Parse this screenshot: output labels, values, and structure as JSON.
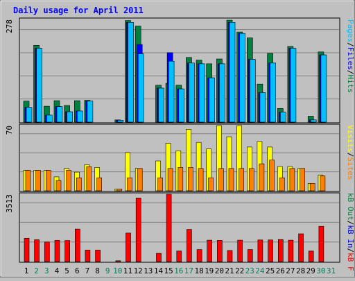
{
  "chart_data": [
    {
      "type": "bar",
      "title": "Daily usage for April 2011",
      "panel": "hits-files-pages",
      "ylim": [
        0,
        278
      ],
      "ymax_label": "278",
      "side_label": [
        "Pages",
        "Files",
        "Hits"
      ],
      "grid": true,
      "categories": [
        "1",
        "2",
        "3",
        "4",
        "5",
        "6",
        "7",
        "8",
        "9",
        "10",
        "11",
        "12",
        "13",
        "14",
        "15",
        "16",
        "17",
        "18",
        "19",
        "20",
        "21",
        "22",
        "23",
        "24",
        "25",
        "26",
        "27",
        "28",
        "29",
        "30",
        "31"
      ],
      "series": [
        {
          "name": "Hits",
          "color": "#008040",
          "values": [
            57,
            208,
            43,
            58,
            45,
            58,
            59,
            0,
            0,
            6,
            275,
            260,
            0,
            100,
            105,
            100,
            175,
            168,
            158,
            171,
            276,
            244,
            228,
            103,
            186,
            37,
            205,
            0,
            16,
            190,
            0
          ]
        },
        {
          "name": "Files",
          "color": "#0000ff",
          "values": [
            40,
            200,
            19,
            42,
            28,
            30,
            57,
            0,
            0,
            5,
            270,
            210,
            0,
            92,
            188,
            90,
            160,
            158,
            120,
            158,
            270,
            240,
            170,
            80,
            160,
            27,
            200,
            0,
            6,
            182,
            0
          ]
        },
        {
          "name": "Pages",
          "color": "#00c0ff",
          "values": [
            40,
            200,
            19,
            42,
            28,
            30,
            57,
            0,
            0,
            5,
            270,
            185,
            0,
            92,
            165,
            90,
            160,
            158,
            120,
            158,
            270,
            240,
            170,
            80,
            160,
            27,
            200,
            0,
            6,
            182,
            0
          ]
        }
      ]
    },
    {
      "type": "bar",
      "panel": "visits-sites",
      "ylim": [
        0,
        70
      ],
      "ymax_label": "70",
      "side_label": [
        "Visits",
        "Sites"
      ],
      "grid": true,
      "categories": [
        "1",
        "2",
        "3",
        "4",
        "5",
        "6",
        "7",
        "8",
        "9",
        "10",
        "11",
        "12",
        "13",
        "14",
        "15",
        "16",
        "17",
        "18",
        "19",
        "20",
        "21",
        "22",
        "23",
        "24",
        "25",
        "26",
        "27",
        "28",
        "29",
        "30",
        "31"
      ],
      "series": [
        {
          "name": "Visits",
          "color": "#ffff00",
          "values": [
            22,
            22,
            22,
            15,
            24,
            20,
            28,
            25,
            0,
            2,
            41,
            24,
            0,
            32,
            51,
            43,
            66,
            52,
            45,
            71,
            58,
            71,
            47,
            53,
            47,
            26,
            26,
            24,
            8,
            17,
            0
          ]
        },
        {
          "name": "Sites",
          "color": "#ff8000",
          "values": [
            22,
            22,
            22,
            11,
            22,
            14,
            26,
            14,
            0,
            2,
            14,
            24,
            0,
            14,
            24,
            25,
            25,
            24,
            14,
            24,
            24,
            24,
            24,
            29,
            33,
            14,
            24,
            24,
            8,
            16,
            0
          ]
        }
      ]
    },
    {
      "type": "bar",
      "panel": "kbytes",
      "ylim": [
        0,
        3513
      ],
      "ymax_label": "3513",
      "side_label": [
        "kB F",
        "kB In",
        "kB Out"
      ],
      "grid": true,
      "categories": [
        "1",
        "2",
        "3",
        "4",
        "5",
        "6",
        "7",
        "8",
        "9",
        "10",
        "11",
        "12",
        "13",
        "14",
        "15",
        "16",
        "17",
        "18",
        "19",
        "20",
        "21",
        "22",
        "23",
        "24",
        "25",
        "26",
        "27",
        "28",
        "29",
        "30",
        "31"
      ],
      "series": [
        {
          "name": "kB F",
          "color": "#ff0000",
          "values": [
            1220,
            1140,
            1020,
            1110,
            1100,
            1700,
            600,
            600,
            0,
            42,
            1490,
            3320,
            0,
            430,
            3600,
            550,
            1680,
            630,
            1120,
            1110,
            580,
            1120,
            630,
            1130,
            1130,
            1150,
            1120,
            1450,
            550,
            1840,
            0
          ]
        }
      ]
    }
  ],
  "x_axis": {
    "labels": [
      "1",
      "2",
      "3",
      "4",
      "5",
      "6",
      "7",
      "8",
      "9",
      "10",
      "11",
      "12",
      "13",
      "14",
      "15",
      "16",
      "17",
      "18",
      "19",
      "20",
      "21",
      "22",
      "23",
      "24",
      "25",
      "26",
      "27",
      "28",
      "29",
      "30",
      "31"
    ],
    "weekend": [
      false,
      true,
      true,
      false,
      false,
      false,
      false,
      false,
      true,
      true,
      false,
      false,
      false,
      false,
      false,
      true,
      true,
      false,
      false,
      false,
      false,
      false,
      true,
      true,
      false,
      false,
      false,
      false,
      false,
      true,
      true
    ],
    "weekday_color": "#000000",
    "weekend_color": "#00805c"
  },
  "colors": {
    "background": "#c0c0c0",
    "title": "#0000ff",
    "grid": "#808080",
    "ymax_label": "#000000",
    "divider": "#808080"
  }
}
